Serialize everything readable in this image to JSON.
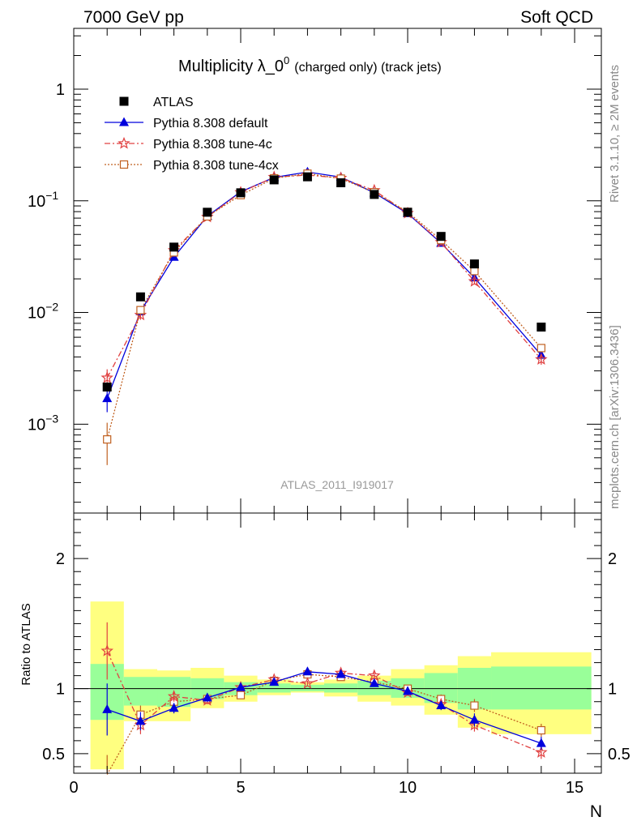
{
  "header": {
    "left": "7000 GeV pp",
    "right": "Soft QCD"
  },
  "side_labels": {
    "rivet": "Rivet 3.1.10, ≥ 2M events",
    "mcplots": "mcplots.cern.ch [arXiv:1306.3436]"
  },
  "colors": {
    "atlas": "#000000",
    "default": "#0000dd",
    "tune4c": "#e04040",
    "tune4cx": "#c06020",
    "band_yellow": "#ffff80",
    "band_green": "#99ff99"
  },
  "chart_data": [
    {
      "type": "scatter",
      "panel": "main",
      "title": "Multiplicity λ_0⁰ (charged only) (track jets)",
      "title_main": "Multiplicity λ_0",
      "title_sup": "0",
      "title_suffix": "(charged only) (track jets)",
      "watermark": "ATLAS_2011_I919017",
      "xlim": [
        0,
        15.8
      ],
      "ylim": [
        0.00016,
        3.5
      ],
      "yscale": "log",
      "yticks": [
        {
          "value": 0.001,
          "base": "10",
          "exp": "−3"
        },
        {
          "value": 0.01,
          "base": "10",
          "exp": "−2"
        },
        {
          "value": 0.1,
          "base": "10",
          "exp": "−1"
        },
        {
          "value": 1,
          "label": "1"
        }
      ],
      "legend_position": "top-left",
      "series": [
        {
          "name": "ATLAS",
          "style": "data",
          "x": [
            1,
            2,
            3,
            4,
            5,
            6,
            7,
            8,
            9,
            10,
            11,
            12,
            14
          ],
          "y": [
            0.00215,
            0.0138,
            0.0385,
            0.079,
            0.118,
            0.154,
            0.164,
            0.145,
            0.114,
            0.079,
            0.048,
            0.0272,
            0.0074
          ]
        },
        {
          "name": "Pythia 8.308 default",
          "style": "default",
          "x": [
            1,
            2,
            3,
            4,
            5,
            6,
            7,
            8,
            9,
            10,
            11,
            12,
            14
          ],
          "y": [
            0.0017,
            0.0102,
            0.0313,
            0.0728,
            0.1205,
            0.162,
            0.181,
            0.163,
            0.118,
            0.077,
            0.0418,
            0.0205,
            0.00415
          ],
          "err": [
            0.00042,
            0.0009,
            0.0015,
            0.0025,
            0.003,
            0.003,
            0.003,
            0.003,
            0.003,
            0.002,
            0.0015,
            0.0013,
            0.0004
          ]
        },
        {
          "name": "Pythia 8.308 tune-4c",
          "style": "tune4c",
          "x": [
            1,
            2,
            3,
            4,
            5,
            6,
            7,
            8,
            9,
            10,
            11,
            12,
            14
          ],
          "y": [
            0.0026,
            0.0095,
            0.036,
            0.0715,
            0.119,
            0.163,
            0.17,
            0.16,
            0.124,
            0.0775,
            0.0425,
            0.019,
            0.0038
          ],
          "err": [
            0.0005,
            0.0009,
            0.0016,
            0.0025,
            0.003,
            0.003,
            0.003,
            0.003,
            0.003,
            0.002,
            0.0015,
            0.0012,
            0.0004
          ]
        },
        {
          "name": "Pythia 8.308 tune-4cx",
          "style": "tune4cx",
          "x": [
            1,
            2,
            3,
            4,
            5,
            6,
            7,
            8,
            9,
            10,
            11,
            12,
            14
          ],
          "y": [
            0.00073,
            0.0105,
            0.0345,
            0.0725,
            0.1125,
            0.159,
            0.175,
            0.158,
            0.119,
            0.0795,
            0.0445,
            0.0235,
            0.0048
          ],
          "err": [
            0.0003,
            0.0009,
            0.0016,
            0.0025,
            0.003,
            0.003,
            0.003,
            0.003,
            0.003,
            0.002,
            0.0015,
            0.0013,
            0.0004
          ]
        }
      ]
    },
    {
      "type": "line",
      "panel": "ratio",
      "ylabel": "Ratio to ATLAS",
      "xlabel": "N",
      "xlim": [
        0,
        15.8
      ],
      "ylim": [
        0.35,
        2.35
      ],
      "xticks": [
        0,
        5,
        10,
        15
      ],
      "yticks": [
        0.5,
        1,
        2
      ],
      "reference_line": 1,
      "bands": [
        {
          "x0": 0.5,
          "x1": 1.5,
          "yellow": [
            0.38,
            1.67
          ],
          "green": [
            0.76,
            1.19
          ]
        },
        {
          "x0": 1.5,
          "x1": 2.5,
          "yellow": [
            0.75,
            1.15
          ],
          "green": [
            0.87,
            1.09
          ]
        },
        {
          "x0": 2.5,
          "x1": 3.5,
          "yellow": [
            0.75,
            1.14
          ],
          "green": [
            0.86,
            1.09
          ]
        },
        {
          "x0": 3.5,
          "x1": 4.5,
          "yellow": [
            0.85,
            1.16
          ],
          "green": [
            0.92,
            1.08
          ]
        },
        {
          "x0": 4.5,
          "x1": 5.5,
          "yellow": [
            0.9,
            1.1
          ],
          "green": [
            0.95,
            1.05
          ]
        },
        {
          "x0": 5.5,
          "x1": 6.5,
          "yellow": [
            0.95,
            1.07
          ],
          "green": [
            0.97,
            1.04
          ]
        },
        {
          "x0": 6.5,
          "x1": 7.5,
          "yellow": [
            0.97,
            1.05
          ],
          "green": [
            0.98,
            1.03
          ]
        },
        {
          "x0": 7.5,
          "x1": 8.5,
          "yellow": [
            0.94,
            1.07
          ],
          "green": [
            0.97,
            1.04
          ]
        },
        {
          "x0": 8.5,
          "x1": 9.5,
          "yellow": [
            0.9,
            1.1
          ],
          "green": [
            0.95,
            1.06
          ]
        },
        {
          "x0": 9.5,
          "x1": 10.5,
          "yellow": [
            0.87,
            1.15
          ],
          "green": [
            0.93,
            1.08
          ]
        },
        {
          "x0": 10.5,
          "x1": 11.5,
          "yellow": [
            0.8,
            1.18
          ],
          "green": [
            0.89,
            1.12
          ]
        },
        {
          "x0": 11.5,
          "x1": 12.5,
          "yellow": [
            0.7,
            1.25
          ],
          "green": [
            0.84,
            1.16
          ]
        },
        {
          "x0": 12.5,
          "x1": 15.5,
          "yellow": [
            0.65,
            1.28
          ],
          "green": [
            0.84,
            1.17
          ]
        }
      ],
      "series": [
        {
          "name": "Pythia 8.308 default",
          "style": "default",
          "x": [
            1,
            2,
            3,
            4,
            5,
            6,
            7,
            8,
            9,
            10,
            11,
            12,
            14
          ],
          "y": [
            0.84,
            0.75,
            0.85,
            0.93,
            1.01,
            1.05,
            1.13,
            1.11,
            1.04,
            0.98,
            0.87,
            0.76,
            0.58
          ],
          "err": [
            0.2,
            0.07,
            0.04,
            0.03,
            0.025,
            0.02,
            0.02,
            0.02,
            0.025,
            0.025,
            0.035,
            0.05,
            0.05
          ]
        },
        {
          "name": "Pythia 8.308 tune-4c",
          "style": "tune4c",
          "x": [
            1,
            2,
            3,
            4,
            5,
            6,
            7,
            8,
            9,
            10,
            11,
            12,
            14
          ],
          "y": [
            1.29,
            0.72,
            0.94,
            0.91,
            1.01,
            1.07,
            1.04,
            1.12,
            1.1,
            0.97,
            0.88,
            0.72,
            0.51
          ],
          "err": [
            0.22,
            0.07,
            0.04,
            0.03,
            0.025,
            0.02,
            0.02,
            0.02,
            0.025,
            0.025,
            0.035,
            0.05,
            0.05
          ]
        },
        {
          "name": "Pythia 8.308 tune-4cx",
          "style": "tune4cx",
          "x": [
            1,
            2,
            3,
            4,
            5,
            6,
            7,
            8,
            9,
            10,
            11,
            12,
            14
          ],
          "y": [
            0.34,
            0.8,
            0.9,
            0.92,
            0.95,
            1.06,
            1.11,
            1.09,
            1.05,
            1.0,
            0.92,
            0.87,
            0.68
          ],
          "err": [
            0.15,
            0.07,
            0.04,
            0.03,
            0.025,
            0.02,
            0.02,
            0.02,
            0.025,
            0.025,
            0.035,
            0.05,
            0.05
          ]
        }
      ]
    }
  ]
}
